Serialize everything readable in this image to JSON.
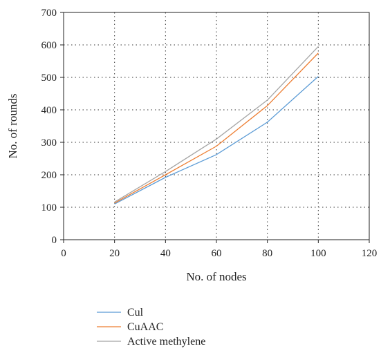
{
  "chart_data": {
    "type": "line",
    "title": "",
    "xlabel": "No. of nodes",
    "ylabel": "No. of rounds",
    "xlim": [
      0,
      120
    ],
    "ylim": [
      0,
      700
    ],
    "xticks": [
      0,
      20,
      40,
      60,
      80,
      100,
      120
    ],
    "yticks": [
      0,
      100,
      200,
      300,
      400,
      500,
      600,
      700
    ],
    "grid": true,
    "legend_position": "bottom",
    "x": [
      20,
      40,
      60,
      80,
      100
    ],
    "series": [
      {
        "name": "Cul",
        "color": "#5b9bd5",
        "values": [
          110,
          192,
          262,
          362,
          503
        ]
      },
      {
        "name": "CuAAC",
        "color": "#ed7d31",
        "values": [
          113,
          200,
          288,
          413,
          575
        ]
      },
      {
        "name": "Active methylene",
        "color": "#a5a5a5",
        "values": [
          116,
          210,
          310,
          430,
          595
        ]
      }
    ]
  }
}
